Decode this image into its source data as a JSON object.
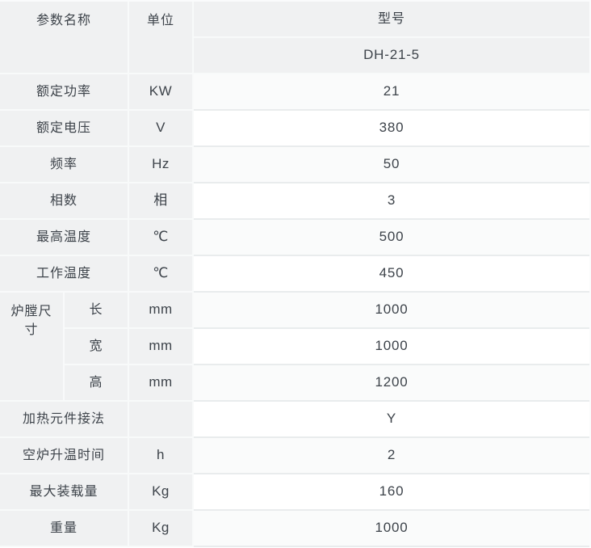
{
  "table": {
    "header": {
      "param_col": "参数名称",
      "unit_col": "单位",
      "model_col": "型号",
      "model_value": "DH-21-5"
    },
    "size_group_label": "炉膛尺寸",
    "rows": [
      {
        "name": "额定功率",
        "unit": "KW",
        "value": "21"
      },
      {
        "name": "额定电压",
        "unit": "V",
        "value": "380"
      },
      {
        "name": "频率",
        "unit": "Hz",
        "value": "50"
      },
      {
        "name": "相数",
        "unit": "相",
        "value": "3"
      },
      {
        "name": "最高温度",
        "unit": "℃",
        "value": "500"
      },
      {
        "name": "工作温度",
        "unit": "℃",
        "value": "450"
      },
      {
        "name": "长",
        "unit": "mm",
        "value": "1000"
      },
      {
        "name": "宽",
        "unit": "mm",
        "value": "1000"
      },
      {
        "name": "高",
        "unit": "mm",
        "value": "1200"
      },
      {
        "name": "加热元件接法",
        "unit": "",
        "value": "Y"
      },
      {
        "name": "空炉升温时间",
        "unit": "h",
        "value": "2"
      },
      {
        "name": "最大装载量",
        "unit": "Kg",
        "value": "160"
      },
      {
        "name": "重量",
        "unit": "Kg",
        "value": "1000"
      }
    ],
    "colors": {
      "cell_gray": "#f0f1f2",
      "row_tint": "#fafbfb",
      "row_white": "#ffffff",
      "border_on_gray": "#f8fafa",
      "border_on_white": "#e9eced",
      "text": "#3d434a"
    }
  }
}
